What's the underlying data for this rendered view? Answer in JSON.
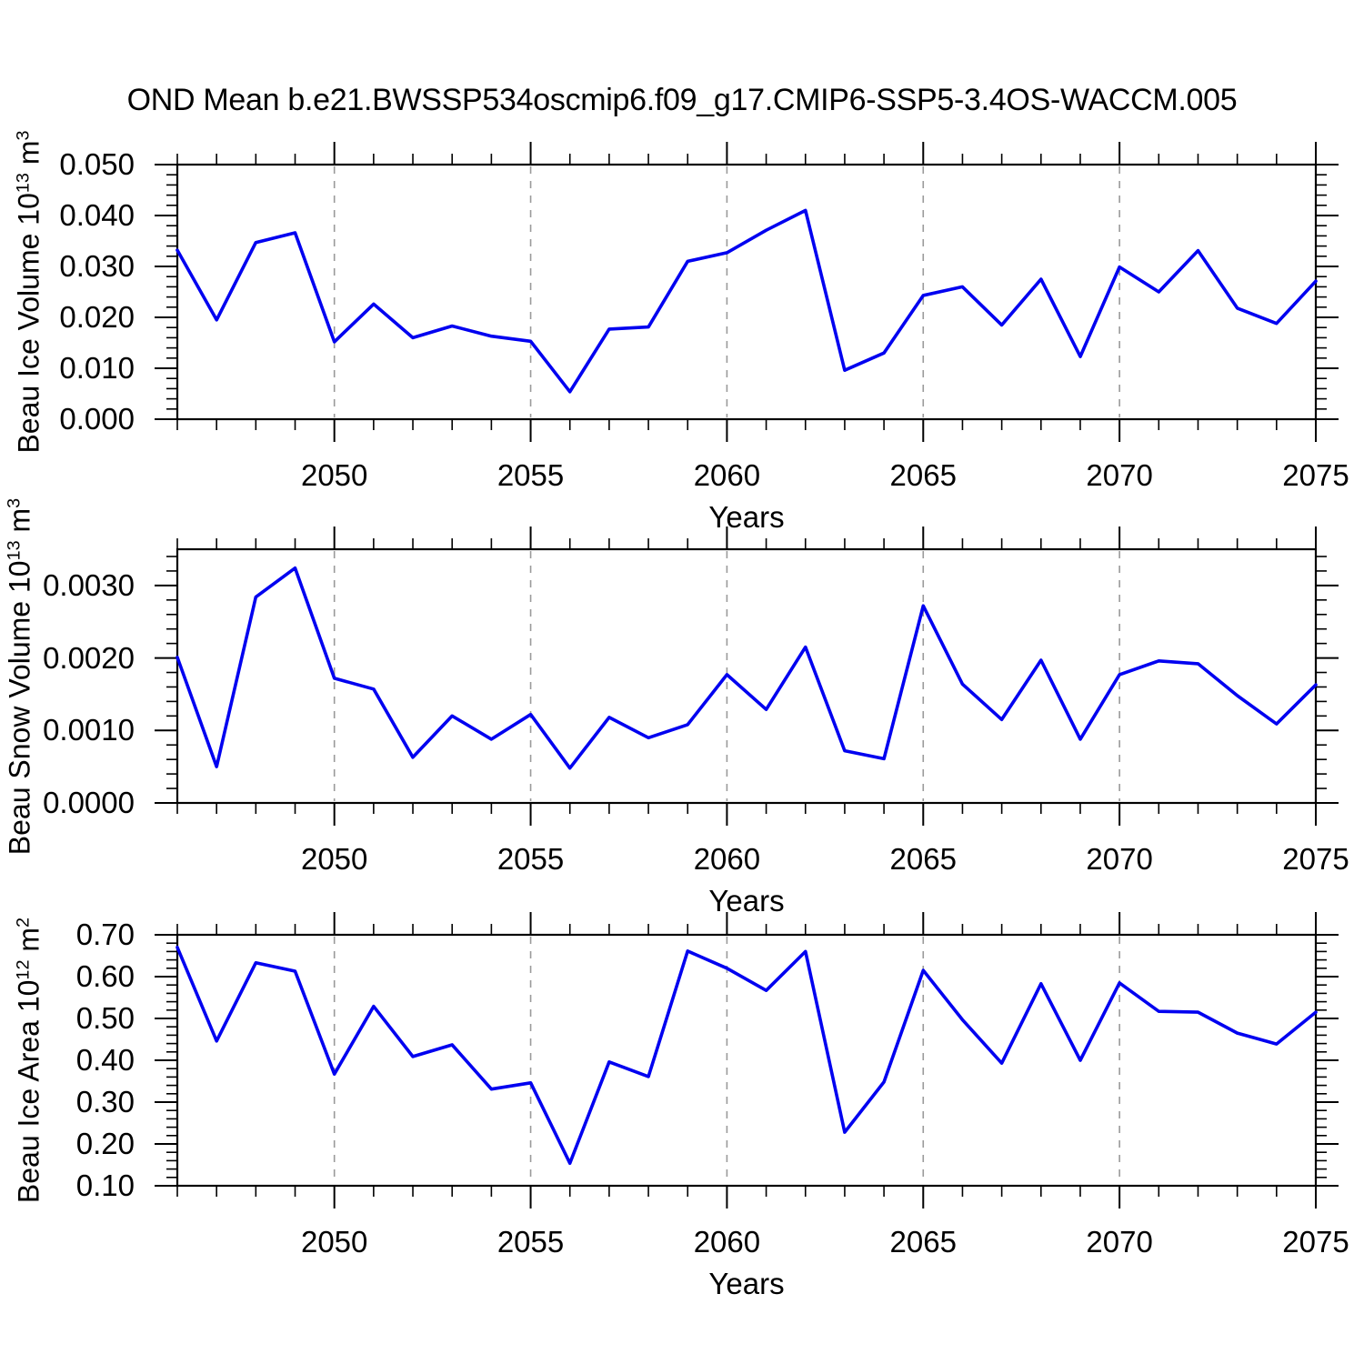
{
  "title": "OND Mean b.e21.BWSSP534oscmip6.f09_g17.CMIP6-SSP5-3.4OS-WACCM.005",
  "colors": {
    "line": "#0000f0",
    "grid": "#9a9a9a",
    "axis": "#000000",
    "background": "#ffffff"
  },
  "chart_data": [
    {
      "type": "line",
      "name": "beau-ice-volume",
      "ylabel_segments": [
        {
          "t": "Beau Ice Volume 10"
        },
        {
          "t": "13",
          "sup": true
        },
        {
          "t": " m"
        },
        {
          "t": "3",
          "sup": true
        }
      ],
      "xlabel": "Years",
      "x": [
        2046,
        2047,
        2048,
        2049,
        2050,
        2051,
        2052,
        2053,
        2054,
        2055,
        2056,
        2057,
        2058,
        2059,
        2060,
        2061,
        2062,
        2063,
        2064,
        2065,
        2066,
        2067,
        2068,
        2069,
        2070,
        2071,
        2072,
        2073,
        2074,
        2075
      ],
      "values": [
        0.0332,
        0.0195,
        0.0347,
        0.0366,
        0.0152,
        0.0226,
        0.016,
        0.0183,
        0.0163,
        0.0153,
        0.0054,
        0.0177,
        0.0181,
        0.031,
        0.0327,
        0.0371,
        0.041,
        0.0096,
        0.013,
        0.0243,
        0.026,
        0.0185,
        0.0275,
        0.0123,
        0.0299,
        0.025,
        0.0331,
        0.0218,
        0.0188,
        0.0271
      ],
      "ylim": [
        0.0,
        0.05
      ],
      "yticks": [
        {
          "v": 0.0,
          "label": "0.000"
        },
        {
          "v": 0.01,
          "label": "0.010"
        },
        {
          "v": 0.02,
          "label": "0.020"
        },
        {
          "v": 0.03,
          "label": "0.030"
        },
        {
          "v": 0.04,
          "label": "0.040"
        },
        {
          "v": 0.05,
          "label": "0.050"
        }
      ],
      "y_minor_step": 0.002,
      "xticks": [
        {
          "v": 2050,
          "label": "2050"
        },
        {
          "v": 2055,
          "label": "2055"
        },
        {
          "v": 2060,
          "label": "2060"
        },
        {
          "v": 2065,
          "label": "2065"
        },
        {
          "v": 2070,
          "label": "2070"
        },
        {
          "v": 2075,
          "label": "2075"
        }
      ],
      "x_minor_step": 1,
      "grid_x": [
        2050,
        2055,
        2060,
        2065,
        2070
      ]
    },
    {
      "type": "line",
      "name": "beau-snow-volume",
      "ylabel_segments": [
        {
          "t": "Beau Snow Volume 10"
        },
        {
          "t": "13",
          "sup": true
        },
        {
          "t": " m"
        },
        {
          "t": "3",
          "sup": true
        }
      ],
      "xlabel": "Years",
      "x": [
        2046,
        2047,
        2048,
        2049,
        2050,
        2051,
        2052,
        2053,
        2054,
        2055,
        2056,
        2057,
        2058,
        2059,
        2060,
        2061,
        2062,
        2063,
        2064,
        2065,
        2066,
        2067,
        2068,
        2069,
        2070,
        2071,
        2072,
        2073,
        2074,
        2075
      ],
      "values": [
        0.00201,
        0.0005,
        0.00284,
        0.00324,
        0.00172,
        0.00157,
        0.00063,
        0.0012,
        0.00088,
        0.00122,
        0.00048,
        0.00118,
        0.0009,
        0.00108,
        0.00177,
        0.00129,
        0.00215,
        0.00072,
        0.00061,
        0.00272,
        0.00164,
        0.00115,
        0.00197,
        0.00088,
        0.00177,
        0.00196,
        0.00192,
        0.00148,
        0.00109,
        0.00163
      ],
      "ylim": [
        0.0,
        0.0035
      ],
      "yticks": [
        {
          "v": 0.0,
          "label": "0.0000"
        },
        {
          "v": 0.001,
          "label": "0.0010"
        },
        {
          "v": 0.002,
          "label": "0.0020"
        },
        {
          "v": 0.003,
          "label": "0.0030"
        }
      ],
      "y_minor_step": 0.0002,
      "xticks": [
        {
          "v": 2050,
          "label": "2050"
        },
        {
          "v": 2055,
          "label": "2055"
        },
        {
          "v": 2060,
          "label": "2060"
        },
        {
          "v": 2065,
          "label": "2065"
        },
        {
          "v": 2070,
          "label": "2070"
        },
        {
          "v": 2075,
          "label": "2075"
        }
      ],
      "x_minor_step": 1,
      "grid_x": [
        2050,
        2055,
        2060,
        2065,
        2070
      ]
    },
    {
      "type": "line",
      "name": "beau-ice-area",
      "ylabel_segments": [
        {
          "t": "Beau Ice Area 10"
        },
        {
          "t": "12",
          "sup": true
        },
        {
          "t": " m"
        },
        {
          "t": "2",
          "sup": true
        }
      ],
      "xlabel": "Years",
      "x": [
        2046,
        2047,
        2048,
        2049,
        2050,
        2051,
        2052,
        2053,
        2054,
        2055,
        2056,
        2057,
        2058,
        2059,
        2060,
        2061,
        2062,
        2063,
        2064,
        2065,
        2066,
        2067,
        2068,
        2069,
        2070,
        2071,
        2072,
        2073,
        2074,
        2075
      ],
      "values": [
        0.67,
        0.446,
        0.633,
        0.613,
        0.367,
        0.529,
        0.409,
        0.437,
        0.331,
        0.346,
        0.154,
        0.396,
        0.361,
        0.661,
        0.62,
        0.567,
        0.66,
        0.228,
        0.348,
        0.615,
        0.497,
        0.393,
        0.583,
        0.4,
        0.585,
        0.517,
        0.515,
        0.465,
        0.439,
        0.515
      ],
      "ylim": [
        0.1,
        0.7
      ],
      "yticks": [
        {
          "v": 0.1,
          "label": "0.10"
        },
        {
          "v": 0.2,
          "label": "0.20"
        },
        {
          "v": 0.3,
          "label": "0.30"
        },
        {
          "v": 0.4,
          "label": "0.40"
        },
        {
          "v": 0.5,
          "label": "0.50"
        },
        {
          "v": 0.6,
          "label": "0.60"
        },
        {
          "v": 0.7,
          "label": "0.70"
        }
      ],
      "y_minor_step": 0.02,
      "xticks": [
        {
          "v": 2050,
          "label": "2050"
        },
        {
          "v": 2055,
          "label": "2055"
        },
        {
          "v": 2060,
          "label": "2060"
        },
        {
          "v": 2065,
          "label": "2065"
        },
        {
          "v": 2070,
          "label": "2070"
        },
        {
          "v": 2075,
          "label": "2075"
        }
      ],
      "x_minor_step": 1,
      "grid_x": [
        2050,
        2055,
        2060,
        2065,
        2070
      ]
    }
  ]
}
